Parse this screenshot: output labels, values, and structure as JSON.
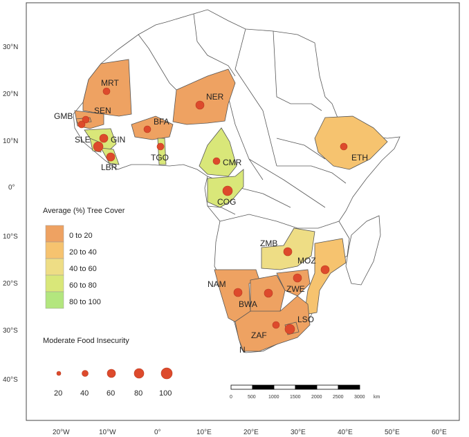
{
  "axes": {
    "lat_labels": [
      "30°N",
      "20°N",
      "10°N",
      "0°",
      "10°S",
      "20°S",
      "30°S",
      "40°S"
    ],
    "lon_labels": [
      "20°W",
      "10°W",
      "0°",
      "10°E",
      "20°E",
      "30°E",
      "40°E",
      "50°E",
      "60°E"
    ]
  },
  "legend_tree": {
    "title": "Average (%) Tree Cover",
    "items": [
      {
        "label": "0 to 20",
        "color": "#eea262"
      },
      {
        "label": "20 to 40",
        "color": "#f6c36f"
      },
      {
        "label": "40 to 60",
        "color": "#eedd85"
      },
      {
        "label": "60 to 80",
        "color": "#d9e779"
      },
      {
        "label": "80 to 100",
        "color": "#b3e67e"
      }
    ]
  },
  "legend_food": {
    "title": "Moderate Food Insecurity",
    "values": [
      "20",
      "40",
      "60",
      "80",
      "100"
    ]
  },
  "scalebar": {
    "ticks": [
      "0",
      "500",
      "1000",
      "1500",
      "2000",
      "2500",
      "3000"
    ],
    "unit": "km"
  },
  "north_symbol": "N",
  "countries": [
    {
      "code": "MRT",
      "fill": "#eea262",
      "insecurity": 50
    },
    {
      "code": "SEN",
      "fill": "#eea262",
      "insecurity": 45
    },
    {
      "code": "GMB",
      "fill": "#eea262",
      "insecurity": 50
    },
    {
      "code": "SLE",
      "fill": "#d9e779",
      "insecurity": 80
    },
    {
      "code": "GIN",
      "fill": "#d9e779",
      "insecurity": 60
    },
    {
      "code": "LBR",
      "fill": "#d9e779",
      "insecurity": 70
    },
    {
      "code": "BFA",
      "fill": "#eea262",
      "insecurity": 55
    },
    {
      "code": "TGO",
      "fill": "#d9e779",
      "insecurity": 60
    },
    {
      "code": "NER",
      "fill": "#eea262",
      "insecurity": 70
    },
    {
      "code": "CMR",
      "fill": "#d9e779",
      "insecurity": 50
    },
    {
      "code": "COG",
      "fill": "#d9e779",
      "insecurity": 75
    },
    {
      "code": "ETH",
      "fill": "#f6c36f",
      "insecurity": 45
    },
    {
      "code": "ZMB",
      "fill": "#eedd85",
      "insecurity": 60
    },
    {
      "code": "MOZ",
      "fill": "#f6c36f",
      "insecurity": 60
    },
    {
      "code": "NAM",
      "fill": "#eea262",
      "insecurity": 60
    },
    {
      "code": "BWA",
      "fill": "#eea262",
      "insecurity": 50
    },
    {
      "code": "ZWE",
      "fill": "#eea262",
      "insecurity": 60
    },
    {
      "code": "LSO",
      "fill": "#eea262",
      "insecurity": 50
    },
    {
      "code": "ZAF",
      "fill": "#eea262",
      "insecurity": 45
    }
  ],
  "colors": {
    "dot": "#dd4a2c",
    "dot_stroke": "#b93a20",
    "border": "#555555"
  }
}
